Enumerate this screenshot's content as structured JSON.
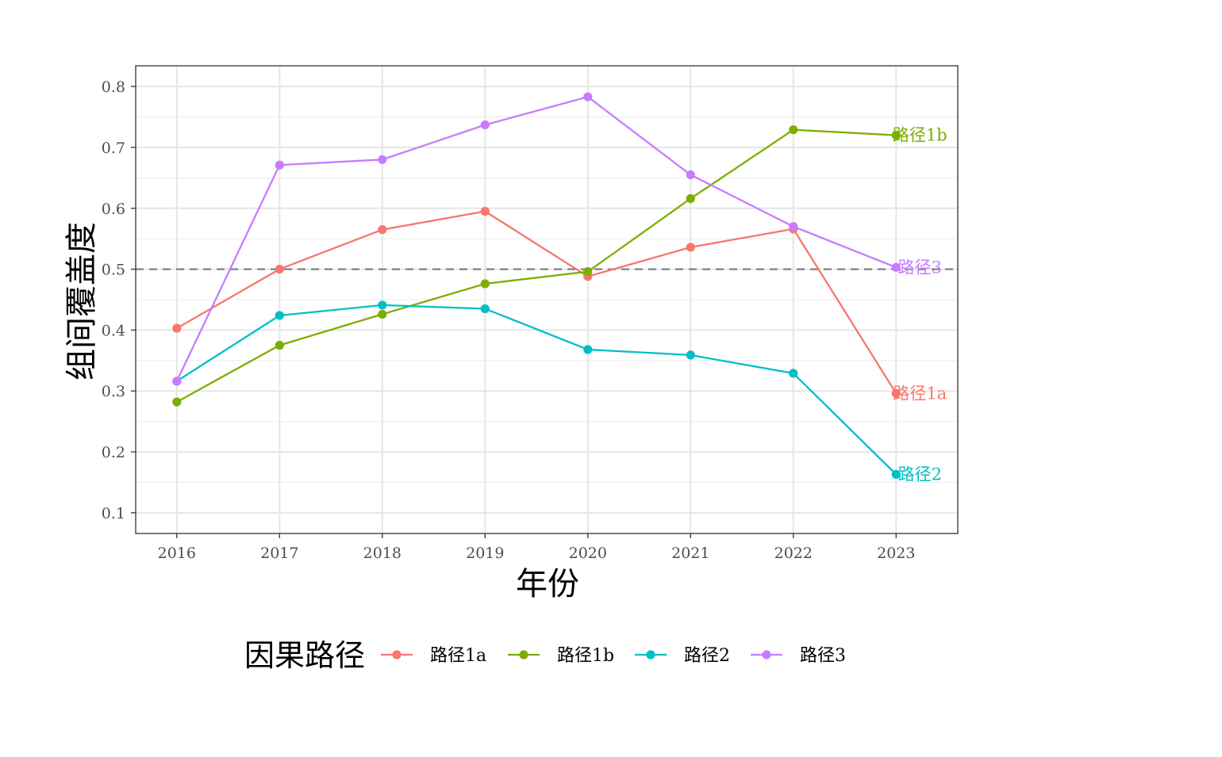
{
  "chart_data": {
    "type": "line",
    "xlabel": "年份",
    "ylabel": "组间覆盖度",
    "x": [
      2016,
      2017,
      2018,
      2019,
      2020,
      2021,
      2022,
      2023
    ],
    "x_tick_labels": [
      "2016",
      "2017",
      "2018",
      "2019",
      "2020",
      "2021",
      "2022",
      "2023"
    ],
    "y_ticks": [
      0.1,
      0.2,
      0.3,
      0.4,
      0.5,
      0.6,
      0.7,
      0.8
    ],
    "y_tick_labels": [
      "0.1",
      "0.2",
      "0.3",
      "0.4",
      "0.5",
      "0.6",
      "0.7",
      "0.8"
    ],
    "xlim": [
      2015.6,
      2023.6
    ],
    "ylim": [
      0.066,
      0.834
    ],
    "grid": true,
    "reference_line": {
      "y": 0.5,
      "style": "dashed",
      "color": "#808080"
    },
    "legend": {
      "title": "因果路径",
      "position": "bottom"
    },
    "series": [
      {
        "name": "路径1a",
        "end_label": "路径1a",
        "color": "#F8766D",
        "values": [
          0.403,
          0.5,
          0.565,
          0.595,
          0.488,
          0.536,
          0.566,
          0.296
        ]
      },
      {
        "name": "路径1b",
        "end_label": "路径1b",
        "color": "#7CAE00",
        "values": [
          0.282,
          0.375,
          0.426,
          0.476,
          0.496,
          0.616,
          0.729,
          0.72
        ]
      },
      {
        "name": "路径2",
        "end_label": "路径2",
        "color": "#00BFC4",
        "values": [
          0.316,
          0.424,
          0.441,
          0.435,
          0.368,
          0.359,
          0.329,
          0.163
        ]
      },
      {
        "name": "路径3",
        "end_label": "路径3",
        "color": "#C77CFF",
        "values": [
          0.316,
          0.671,
          0.68,
          0.737,
          0.783,
          0.655,
          0.57,
          0.503
        ]
      }
    ]
  }
}
